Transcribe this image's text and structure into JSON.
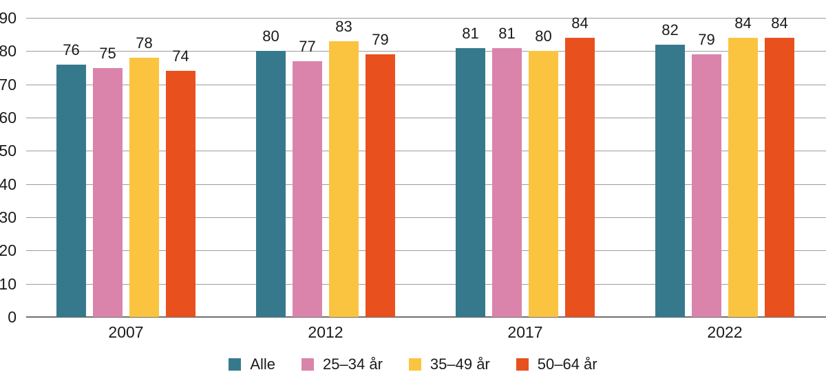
{
  "chart_data": {
    "type": "bar",
    "title": "",
    "xlabel": "",
    "ylabel": "",
    "categories": [
      "2007",
      "2012",
      "2017",
      "2022"
    ],
    "series": [
      {
        "name": "Alle",
        "color": "#37798C",
        "values": [
          76,
          80,
          81,
          82
        ]
      },
      {
        "name": "25–34 år",
        "color": "#DA84AC",
        "values": [
          75,
          77,
          81,
          79
        ]
      },
      {
        "name": "35–49 år",
        "color": "#FBC440",
        "values": [
          78,
          83,
          80,
          84
        ]
      },
      {
        "name": "50–64 år",
        "color": "#E8501E",
        "values": [
          74,
          79,
          84,
          84
        ]
      }
    ],
    "ylim": [
      0,
      90
    ],
    "yticks": [
      0,
      10,
      20,
      30,
      40,
      50,
      60,
      70,
      80,
      90
    ],
    "grid": true,
    "value_labels": true,
    "legend_position": "bottom"
  },
  "colors": {
    "background": "#ffffff",
    "gridline": "#9b9b9b",
    "axis_line": "#6f6f6f",
    "text": "#1a1a1a"
  }
}
